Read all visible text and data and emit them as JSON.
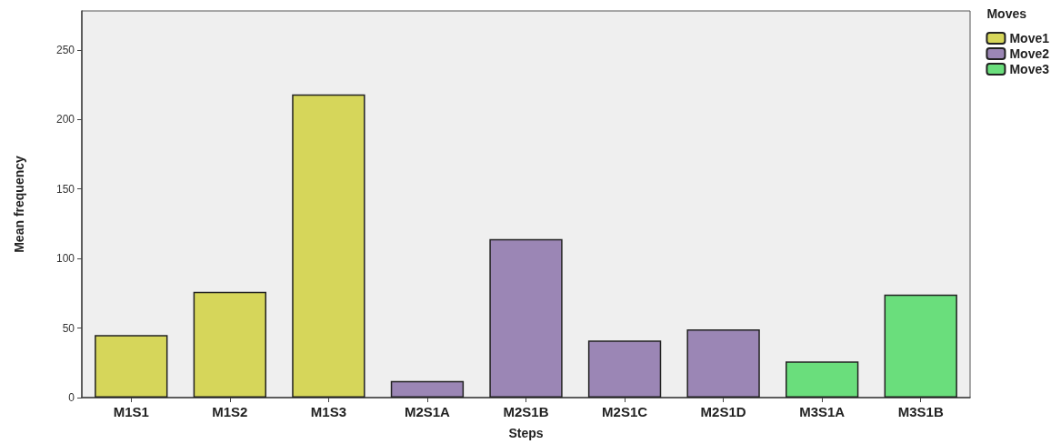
{
  "chart_data": {
    "type": "bar",
    "xlabel": "Steps",
    "ylabel": "Mean frequency",
    "legend_title": "Moves",
    "categories": [
      "M1S1",
      "M1S2",
      "M1S3",
      "M2S1A",
      "M2S1B",
      "M2S1C",
      "M2S1D",
      "M3S1A",
      "M3S1B"
    ],
    "series": [
      {
        "name": "Move1",
        "color": "#d6d65a",
        "values": [
          45,
          76,
          218,
          null,
          null,
          null,
          null,
          null,
          null
        ]
      },
      {
        "name": "Move2",
        "color": "#9b86b5",
        "values": [
          null,
          null,
          null,
          12,
          114,
          41,
          49,
          null,
          null
        ]
      },
      {
        "name": "Move3",
        "color": "#6ade7c",
        "values": [
          null,
          null,
          null,
          null,
          null,
          null,
          null,
          26,
          74
        ]
      }
    ],
    "ylim": [
      0,
      278
    ],
    "yticks": [
      0,
      50,
      100,
      150,
      200,
      250
    ],
    "grid": false,
    "legend": "top right"
  }
}
